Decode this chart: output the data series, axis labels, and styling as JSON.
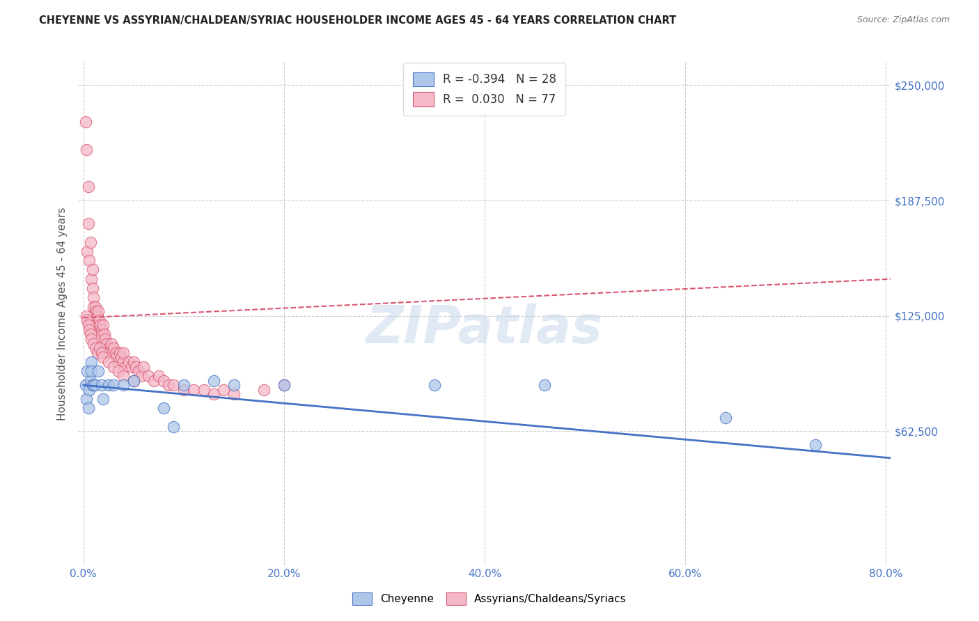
{
  "title": "CHEYENNE VS ASSYRIAN/CHALDEAN/SYRIAC HOUSEHOLDER INCOME AGES 45 - 64 YEARS CORRELATION CHART",
  "source": "Source: ZipAtlas.com",
  "ylabel": "Householder Income Ages 45 - 64 years",
  "xlabel_ticks": [
    "0.0%",
    "20.0%",
    "40.0%",
    "60.0%",
    "80.0%"
  ],
  "xlabel_vals": [
    0.0,
    0.2,
    0.4,
    0.6,
    0.8
  ],
  "ytick_labels": [
    "$62,500",
    "$125,000",
    "$187,500",
    "$250,000"
  ],
  "ytick_vals": [
    62500,
    125000,
    187500,
    250000
  ],
  "ylim": [
    -10000,
    262500
  ],
  "xlim": [
    -0.005,
    0.805
  ],
  "cheyenne_color": "#aec6e8",
  "assyrian_color": "#f4b8c8",
  "cheyenne_edge_color": "#4472c4",
  "assyrian_edge_color": "#d9546e",
  "cheyenne_line_color": "#4472c4",
  "assyrian_line_color": "#d9546e",
  "background_color": "#ffffff",
  "watermark": "ZIPatlas",
  "grid_color": "#cccccc",
  "title_color": "#222222",
  "ylabel_color": "#555555",
  "tick_color": "#4472c4",
  "cheyenne_R": -0.394,
  "cheyenne_N": 28,
  "assyrian_R": 0.03,
  "assyrian_N": 77,
  "chey_line_x0": 0.0,
  "chey_line_y0": 87500,
  "chey_line_x1": 0.805,
  "chey_line_y1": 48000,
  "assy_line_x0": 0.0,
  "assy_line_y0": 124000,
  "assy_line_x1": 0.805,
  "assy_line_y1": 145000,
  "cheyenne_x": [
    0.002,
    0.003,
    0.004,
    0.005,
    0.006,
    0.007,
    0.008,
    0.008,
    0.009,
    0.01,
    0.012,
    0.015,
    0.018,
    0.02,
    0.025,
    0.03,
    0.04,
    0.05,
    0.08,
    0.09,
    0.1,
    0.13,
    0.15,
    0.2,
    0.35,
    0.46,
    0.64,
    0.73
  ],
  "cheyenne_y": [
    87500,
    80000,
    95000,
    75000,
    85000,
    90000,
    100000,
    95000,
    87500,
    87500,
    87500,
    95000,
    87500,
    80000,
    87500,
    87500,
    87500,
    90000,
    75000,
    65000,
    87500,
    90000,
    87500,
    87500,
    87500,
    87500,
    70000,
    55000
  ],
  "assyrian_x": [
    0.002,
    0.003,
    0.004,
    0.005,
    0.005,
    0.006,
    0.007,
    0.008,
    0.009,
    0.009,
    0.01,
    0.01,
    0.01,
    0.012,
    0.013,
    0.014,
    0.015,
    0.015,
    0.016,
    0.017,
    0.018,
    0.019,
    0.02,
    0.02,
    0.021,
    0.022,
    0.023,
    0.025,
    0.026,
    0.028,
    0.03,
    0.032,
    0.033,
    0.035,
    0.036,
    0.038,
    0.04,
    0.04,
    0.042,
    0.045,
    0.048,
    0.05,
    0.052,
    0.055,
    0.058,
    0.06,
    0.065,
    0.07,
    0.075,
    0.08,
    0.085,
    0.09,
    0.1,
    0.11,
    0.12,
    0.13,
    0.14,
    0.15,
    0.18,
    0.2,
    0.003,
    0.004,
    0.005,
    0.006,
    0.007,
    0.008,
    0.01,
    0.012,
    0.014,
    0.016,
    0.018,
    0.02,
    0.025,
    0.03,
    0.035,
    0.04,
    0.05
  ],
  "assyrian_y": [
    230000,
    215000,
    160000,
    175000,
    195000,
    155000,
    165000,
    145000,
    140000,
    150000,
    135000,
    125000,
    130000,
    130000,
    127500,
    125000,
    120000,
    127500,
    122500,
    120000,
    117500,
    115000,
    120000,
    110000,
    115000,
    112500,
    110000,
    107500,
    105000,
    110000,
    107500,
    105000,
    102500,
    100000,
    105000,
    102500,
    100000,
    105000,
    97500,
    100000,
    97500,
    100000,
    97500,
    95000,
    92500,
    97500,
    92500,
    90000,
    92500,
    90000,
    87500,
    87500,
    85000,
    85000,
    85000,
    82500,
    85000,
    82500,
    85000,
    87500,
    125000,
    122500,
    120000,
    117500,
    115000,
    112500,
    110000,
    107500,
    105000,
    107500,
    105000,
    102500,
    100000,
    97500,
    95000,
    92500,
    90000
  ]
}
